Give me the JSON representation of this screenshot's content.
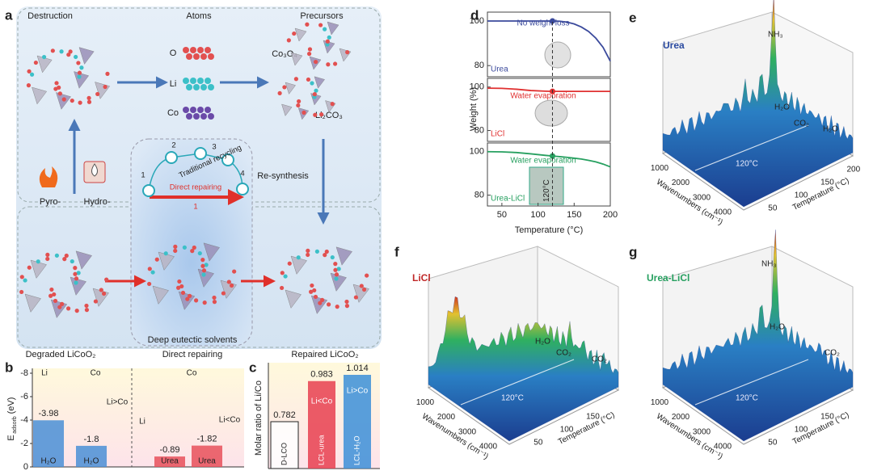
{
  "panels": {
    "a": {
      "letter": "a",
      "destruction": "Destruction",
      "atoms": "Atoms",
      "precursors": "Precursors",
      "o": "O",
      "li": "Li",
      "co": "Co",
      "co3o4": "Co₃O₄",
      "li2co3": "Li₂CO₃",
      "pyro": "Pyro-",
      "hydro": "Hydro-",
      "traditional": "Traditional recycling",
      "direct": "Direct repairing",
      "steps": [
        "1",
        "2",
        "3",
        "4"
      ],
      "direct_step": "1",
      "resynthesis": "Re-synthesis",
      "des": "Deep eutectic solvents",
      "degraded": "Degraded LiCoO₂",
      "direct_caption": "Direct repairing",
      "repaired": "Repaired LiCoO₂"
    },
    "b": {
      "letter": "b"
    },
    "c": {
      "letter": "c"
    },
    "d": {
      "letter": "d"
    },
    "e": {
      "letter": "e",
      "name": "Urea",
      "peaks": [
        "NH₃",
        "H₂O",
        "CO₂",
        "H₂O"
      ],
      "marker": "120°C",
      "xlabel": "Wavenumbers (cm⁻¹)",
      "xticks": [
        1000,
        2000,
        3000,
        4000
      ],
      "ylabel": "Temperature (°C)",
      "yticks": [
        50,
        100,
        150,
        200
      ]
    },
    "f": {
      "letter": "f",
      "name": "LiCl",
      "peaks": [
        "H₂O",
        "CO₂",
        "CO₂"
      ],
      "marker": "120°C",
      "xlabel": "Wavenumbers (cm⁻¹)",
      "xticks": [
        1000,
        2000,
        3000,
        4000
      ],
      "ylabel": "Temperature (°C)",
      "yticks": [
        50,
        100,
        150
      ]
    },
    "g": {
      "letter": "g",
      "name": "Urea-LiCl",
      "peaks": [
        "NH₃",
        "H₂O",
        "CO₂"
      ],
      "marker": "120°C",
      "xlabel": "Wavenumbers (cm⁻¹)",
      "xticks": [
        1000,
        2000,
        3000,
        4000
      ],
      "ylabel": "Temperature (°C)",
      "yticks": [
        50,
        100,
        150
      ]
    }
  },
  "chart_data": [
    {
      "type": "bar",
      "ylabel": "E",
      "ylabel_subscript": "adsorb",
      "ylabel_unit": "(eV)",
      "categories": [
        "H₂O",
        "H₂O",
        "Urea",
        "Urea"
      ],
      "values": [
        -3.98,
        -1.8,
        -0.89,
        -1.82
      ],
      "colors": [
        "#4a8fd6",
        "#4a8fd6",
        "#e8505a",
        "#e8505a"
      ],
      "annotations": [
        "Li",
        "Co",
        "Li>Co",
        "Li",
        "Co",
        "Li<Co"
      ],
      "ylim": [
        0,
        -8
      ],
      "yticks": [
        0,
        -2,
        -4,
        -6,
        -8
      ]
    },
    {
      "type": "bar",
      "ylabel": "Molar ratio of Li/Co",
      "categories": [
        "D-LCO",
        "LCL-urea",
        "LCL-H₂O"
      ],
      "values": [
        0.782,
        0.983,
        1.014
      ],
      "colors": [
        "#ffffff",
        "#e84050",
        "#3c8fd8"
      ],
      "annotations": [
        "Li<Co",
        "Li>Co"
      ],
      "ylim": [
        0.55,
        1.05
      ]
    },
    {
      "type": "line",
      "subplots": true,
      "xlabel": "Temperature (°C)",
      "ylabel": "Weight (%)",
      "x": [
        30,
        50,
        70,
        90,
        110,
        120,
        130,
        140,
        150,
        160,
        170,
        180,
        190,
        200
      ],
      "xlim": [
        30,
        200
      ],
      "xticks": [
        50,
        100,
        150,
        200
      ],
      "ylim": [
        75,
        104
      ],
      "yticks": [
        80,
        100
      ],
      "marker_x": 120,
      "marker_label": "120°C",
      "series": [
        {
          "name": "Urea",
          "color": "#3b4a9c",
          "annotation": "No weight loss",
          "values": [
            100,
            100,
            100,
            100,
            100,
            100,
            99.9,
            99.5,
            98.7,
            97.3,
            95.3,
            92.3,
            88.2,
            82
          ]
        },
        {
          "name": "LiCl",
          "color": "#e03030",
          "annotation": "Water evaporation",
          "values": [
            99.5,
            99.4,
            99,
            98.4,
            98.1,
            98,
            98,
            98,
            98,
            98,
            98,
            98,
            98,
            98
          ]
        },
        {
          "name": "Urea-LiCl",
          "color": "#27a060",
          "annotation": "Water evaporation",
          "values": [
            100,
            99.9,
            99.6,
            99,
            98.3,
            98,
            97.7,
            97.4,
            97,
            96.6,
            96,
            95.3,
            94.3,
            93
          ]
        }
      ]
    }
  ]
}
